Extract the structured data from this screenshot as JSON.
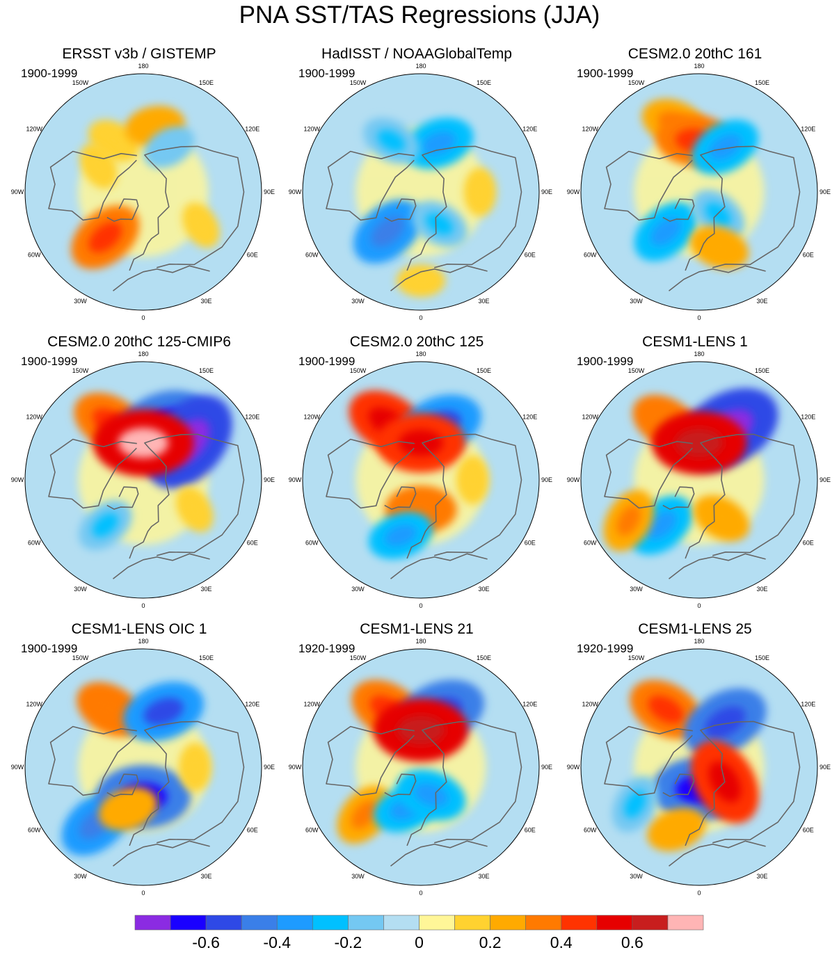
{
  "title": "PNA SST/TAS Regressions (JJA)",
  "longitude_labels": [
    "180",
    "150E",
    "120E",
    "90E",
    "60E",
    "30E",
    "0",
    "30W",
    "60W",
    "90W",
    "120W",
    "150W"
  ],
  "panels": [
    {
      "title": "ERSST v3b / GISTEMP",
      "period": "1900-1999"
    },
    {
      "title": "HadISST / NOAAGlobalTemp",
      "period": "1900-1999"
    },
    {
      "title": "CESM2.0 20thC 161",
      "period": "1900-1999"
    },
    {
      "title": "CESM2.0 20thC 125-CMIP6",
      "period": "1900-1999"
    },
    {
      "title": "CESM2.0 20thC 125",
      "period": "1900-1999"
    },
    {
      "title": "CESM1-LENS 1",
      "period": "1900-1999"
    },
    {
      "title": "CESM1-LENS OIC 1",
      "period": "1900-1999"
    },
    {
      "title": "CESM1-LENS 21",
      "period": "1920-1999"
    },
    {
      "title": "CESM1-LENS 25",
      "period": "1920-1999"
    }
  ],
  "colorbar": {
    "colors": [
      "#8b2be2",
      "#1a00ff",
      "#2e49e6",
      "#3a7fe8",
      "#1e9bff",
      "#00c0ff",
      "#74c8f2",
      "#b4def2",
      "#fff698",
      "#ffd230",
      "#ffaa00",
      "#ff7a00",
      "#ff3300",
      "#e60000",
      "#c81e1e",
      "#ffb5b5"
    ],
    "tick_labels": [
      "-0.6",
      "-0.4",
      "-0.2",
      "0",
      "0.2",
      "0.4",
      "0.6"
    ],
    "tick_values": [
      -0.6,
      -0.4,
      -0.2,
      0,
      0.2,
      0.4,
      0.6
    ],
    "range": [
      -0.8,
      0.8
    ]
  },
  "chart_data": {
    "type": "heatmap",
    "title": "PNA SST/TAS Regressions (JJA)",
    "projection": "north-polar-stereographic",
    "contour_levels": [
      -0.7,
      -0.6,
      -0.5,
      -0.4,
      -0.3,
      -0.2,
      -0.1,
      0,
      0.1,
      0.2,
      0.3,
      0.4,
      0.5,
      0.6,
      0.7
    ],
    "panel_anomalies": [
      [
        {
          "lon": -150,
          "lat": 50,
          "value": 0.15
        },
        {
          "lon": 170,
          "lat": 45,
          "value": 0.2
        },
        {
          "lon": 150,
          "lat": 55,
          "value": -0.15
        },
        {
          "lon": -40,
          "lat": 50,
          "value": 0.35
        },
        {
          "lon": 60,
          "lat": 45,
          "value": 0.1
        },
        {
          "lon": -120,
          "lat": 55,
          "value": 0.1
        }
      ],
      [
        {
          "lon": 160,
          "lat": 55,
          "value": -0.3
        },
        {
          "lon": -150,
          "lat": 50,
          "value": -0.2
        },
        {
          "lon": -40,
          "lat": 55,
          "value": -0.35
        },
        {
          "lon": 30,
          "lat": 65,
          "value": -0.2
        },
        {
          "lon": 90,
          "lat": 50,
          "value": 0.1
        },
        {
          "lon": 0,
          "lat": 30,
          "value": 0.1
        }
      ],
      [
        {
          "lon": -160,
          "lat": 40,
          "value": 0.25
        },
        {
          "lon": -175,
          "lat": 55,
          "value": 0.35
        },
        {
          "lon": 150,
          "lat": 55,
          "value": -0.3
        },
        {
          "lon": -40,
          "lat": 55,
          "value": -0.3
        },
        {
          "lon": 40,
          "lat": 70,
          "value": -0.2
        },
        {
          "lon": 20,
          "lat": 50,
          "value": 0.2
        }
      ],
      [
        {
          "lon": -150,
          "lat": 45,
          "value": 0.35
        },
        {
          "lon": 160,
          "lat": 50,
          "value": -0.5
        },
        {
          "lon": 130,
          "lat": 50,
          "value": -0.6
        },
        {
          "lon": -180,
          "lat": 65,
          "value": 0.55
        },
        {
          "lon": -40,
          "lat": 50,
          "value": -0.2
        },
        {
          "lon": 60,
          "lat": 50,
          "value": 0.1
        }
      ],
      [
        {
          "lon": -150,
          "lat": 45,
          "value": 0.4
        },
        {
          "lon": 160,
          "lat": 50,
          "value": -0.4
        },
        {
          "lon": -180,
          "lat": 65,
          "value": 0.45
        },
        {
          "lon": 0,
          "lat": 70,
          "value": 0.3
        },
        {
          "lon": -20,
          "lat": 50,
          "value": -0.25
        },
        {
          "lon": 90,
          "lat": 55,
          "value": 0.1
        }
      ],
      [
        {
          "lon": -150,
          "lat": 45,
          "value": 0.3
        },
        {
          "lon": 150,
          "lat": 50,
          "value": -0.6
        },
        {
          "lon": -180,
          "lat": 65,
          "value": 0.5
        },
        {
          "lon": -40,
          "lat": 50,
          "value": -0.3
        },
        {
          "lon": -60,
          "lat": 35,
          "value": 0.25
        },
        {
          "lon": 30,
          "lat": 60,
          "value": 0.2
        }
      ],
      [
        {
          "lon": -150,
          "lat": 45,
          "value": 0.3
        },
        {
          "lon": 160,
          "lat": 50,
          "value": -0.4
        },
        {
          "lon": -40,
          "lat": 40,
          "value": -0.35
        },
        {
          "lon": 0,
          "lat": 70,
          "value": -0.5
        },
        {
          "lon": -20,
          "lat": 60,
          "value": 0.2
        },
        {
          "lon": 90,
          "lat": 55,
          "value": 0.1
        }
      ],
      [
        {
          "lon": -150,
          "lat": 45,
          "value": 0.35
        },
        {
          "lon": 160,
          "lat": 50,
          "value": -0.45
        },
        {
          "lon": -50,
          "lat": 40,
          "value": 0.25
        },
        {
          "lon": -20,
          "lat": 60,
          "value": -0.25
        },
        {
          "lon": 20,
          "lat": 70,
          "value": -0.3
        },
        {
          "lon": -180,
          "lat": 65,
          "value": 0.5
        }
      ],
      [
        {
          "lon": -150,
          "lat": 45,
          "value": 0.35
        },
        {
          "lon": 150,
          "lat": 55,
          "value": -0.45
        },
        {
          "lon": 0,
          "lat": 75,
          "value": -0.5
        },
        {
          "lon": -60,
          "lat": 40,
          "value": -0.2
        },
        {
          "lon": 60,
          "lat": 70,
          "value": 0.45
        },
        {
          "lon": -20,
          "lat": 45,
          "value": 0.2
        }
      ]
    ],
    "colorbar_range": [
      -0.8,
      0.8
    ]
  }
}
